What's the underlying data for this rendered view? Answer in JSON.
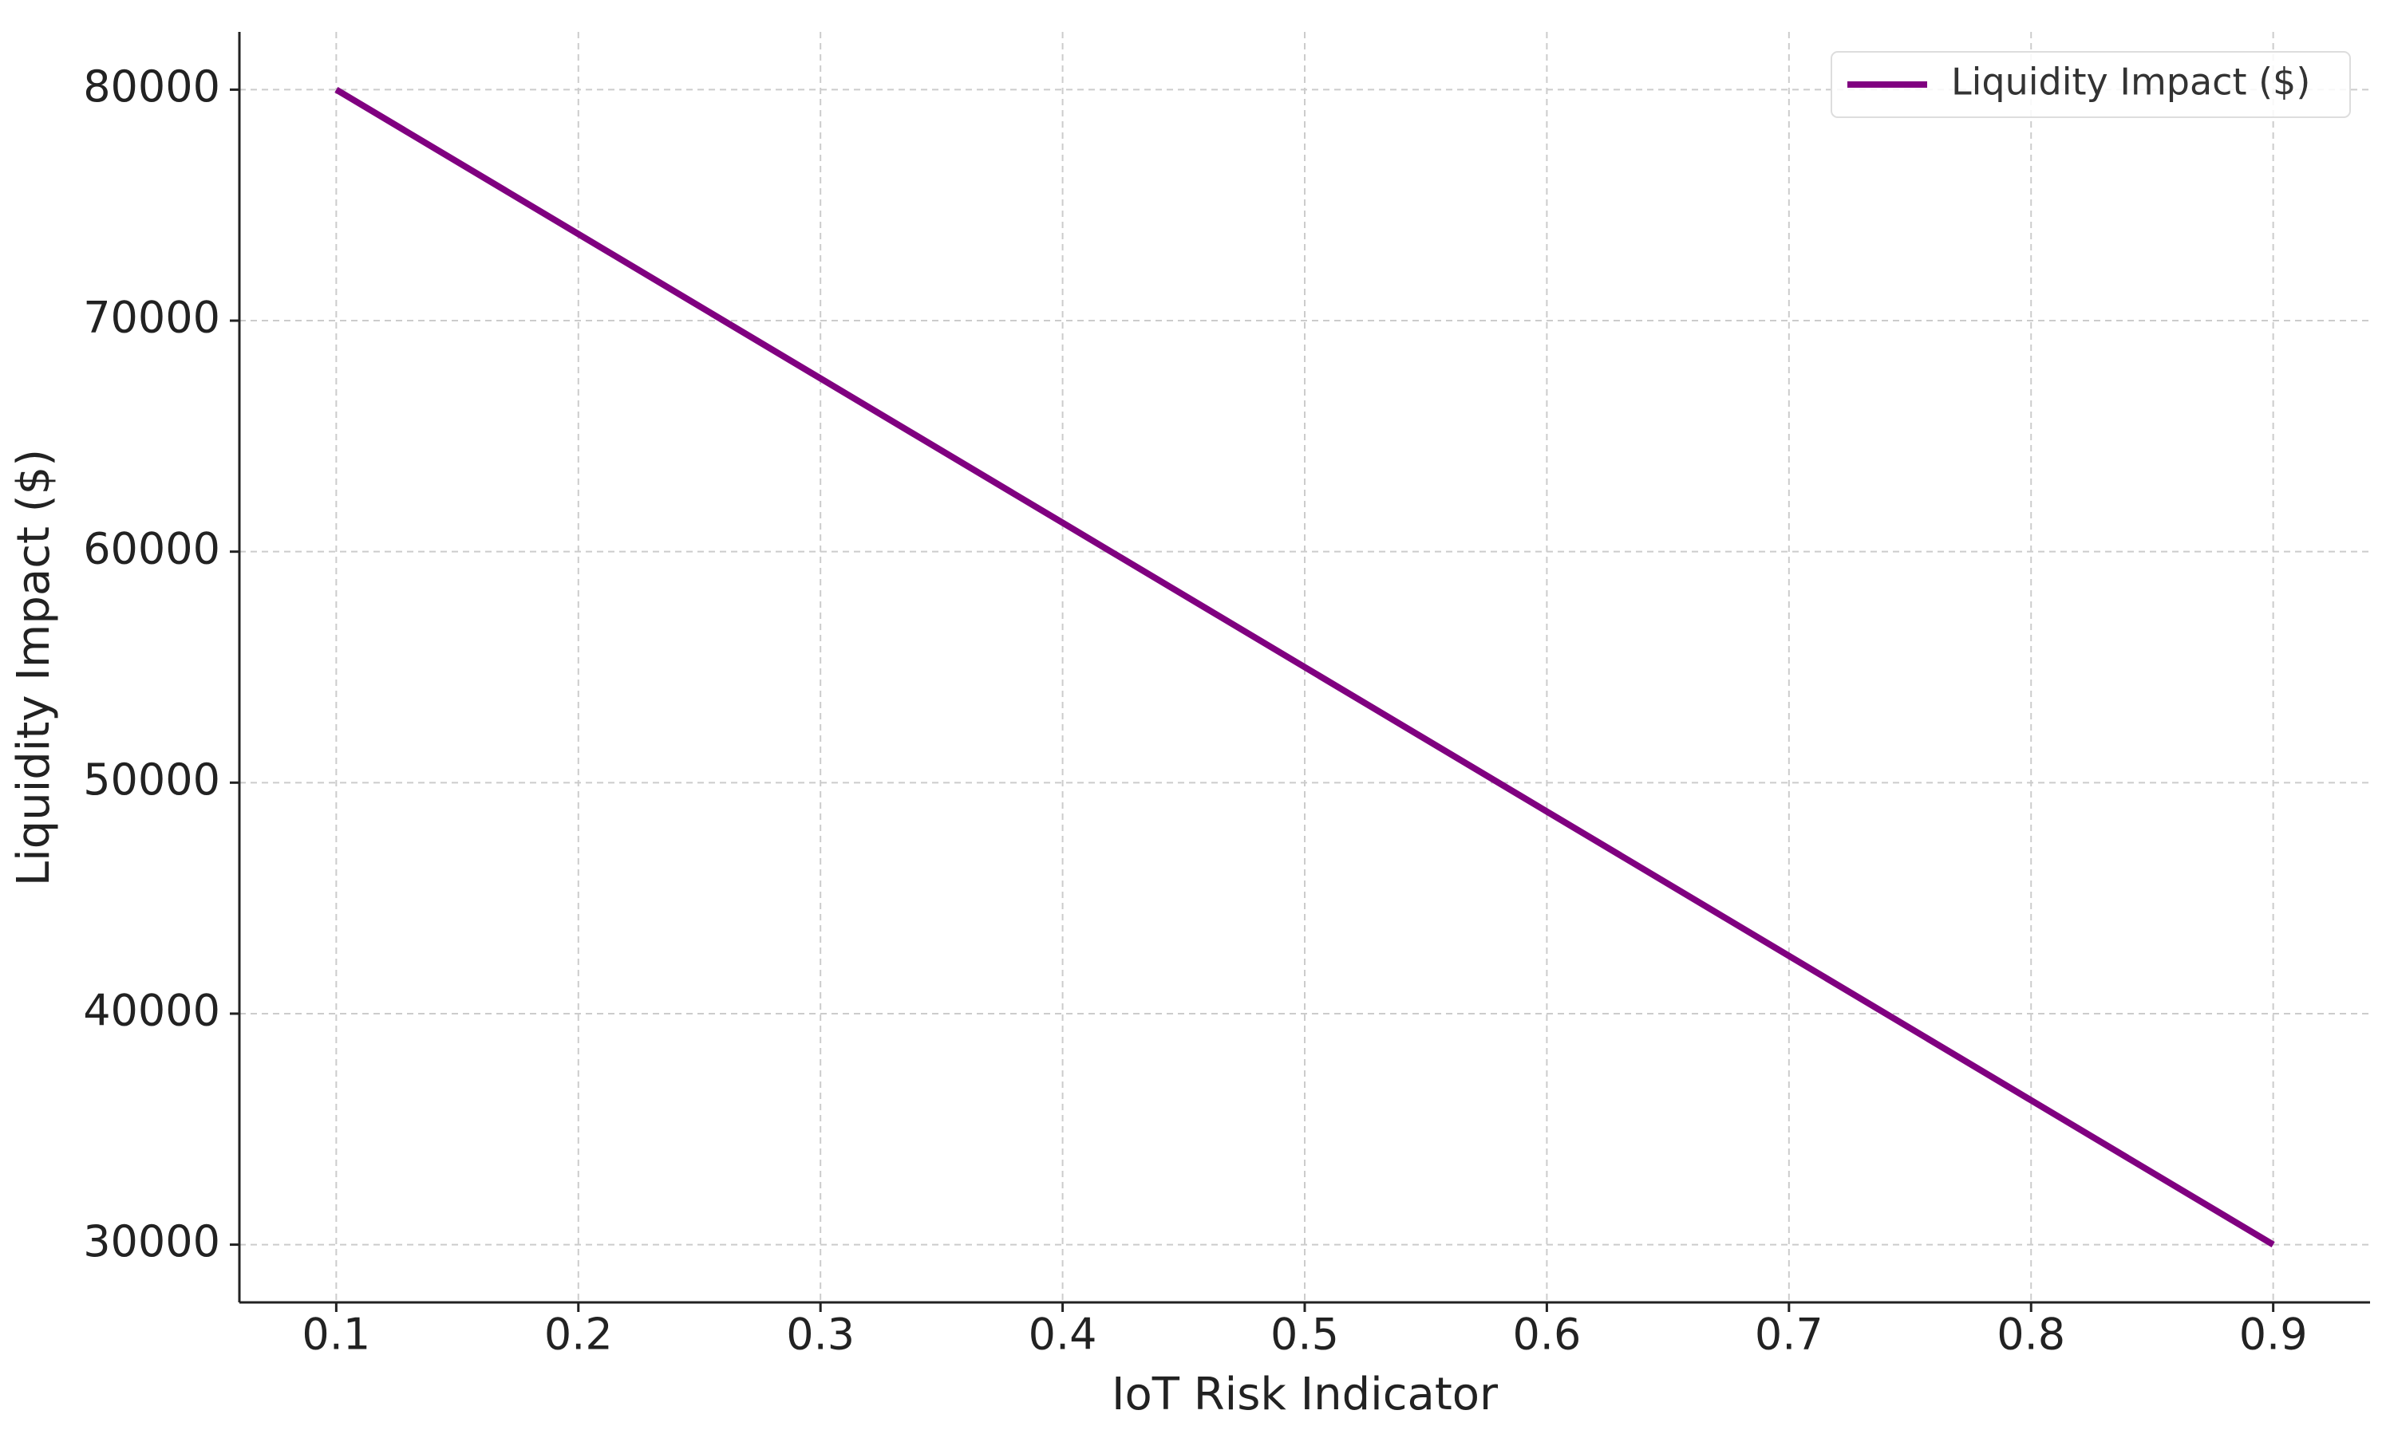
{
  "chart_data": {
    "type": "line",
    "x": [
      0.1,
      0.2,
      0.3,
      0.4,
      0.5,
      0.6,
      0.7,
      0.8,
      0.9
    ],
    "series": [
      {
        "name": "Liquidity Impact ($)",
        "color": "#800080",
        "values": [
          80000,
          73750,
          67500,
          61250,
          55000,
          48750,
          42500,
          36250,
          30000
        ]
      }
    ],
    "xlabel": "IoT Risk Indicator",
    "ylabel": "Liquidity Impact ($)",
    "xlim": [
      0.06,
      0.94
    ],
    "ylim": [
      27500,
      82500
    ],
    "xticks": [
      0.1,
      0.2,
      0.3,
      0.4,
      0.5,
      0.6,
      0.7,
      0.8,
      0.9
    ],
    "yticks": [
      30000,
      40000,
      50000,
      60000,
      70000,
      80000
    ],
    "grid": true,
    "legend": "upper right"
  }
}
